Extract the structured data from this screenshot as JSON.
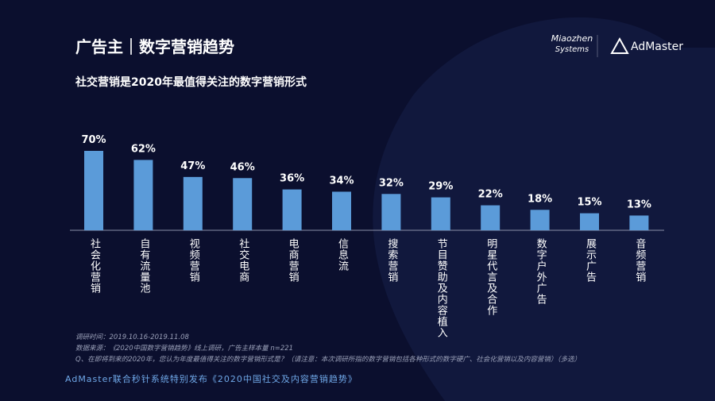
{
  "chart_data": {
    "type": "bar",
    "title": "广告主｜数字营销趋势",
    "subtitle": "社交营销是2020年最值得关注的数字营销形式",
    "categories": [
      "社会化营销",
      "自有流量池",
      "视频营销",
      "社交电商",
      "电商营销",
      "信息流",
      "搜索营销",
      "节目赞助及内容植入",
      "明星代言及合作",
      "数字户外广告",
      "展示广告",
      "音频营销"
    ],
    "values": [
      70,
      62,
      47,
      46,
      36,
      34,
      32,
      29,
      22,
      18,
      15,
      13
    ],
    "value_labels": [
      "70%",
      "62%",
      "47%",
      "46%",
      "36%",
      "34%",
      "32%",
      "29%",
      "22%",
      "18%",
      "15%",
      "13%"
    ],
    "color": "#5b9bd9"
  },
  "logos": [
    "Miaozhen",
    "Systems",
    "AdMaster"
  ],
  "notes": [
    "调研时间：2019.10.16-2019.11.08",
    "数据来源：《2020中国数字营销趋势》线上调研，广告主样本量 n=221",
    "Q、在即将到来的2020年，您认为年度最值得关注的数字营销形式是？（请注意：本次调研所指的数字营销包括各种形式的数字硬广、社会化营销以及内容营销）（多选）"
  ],
  "footer": "AdMaster联合秒针系统特别发布《2020中国社交及内容营销趋势》"
}
